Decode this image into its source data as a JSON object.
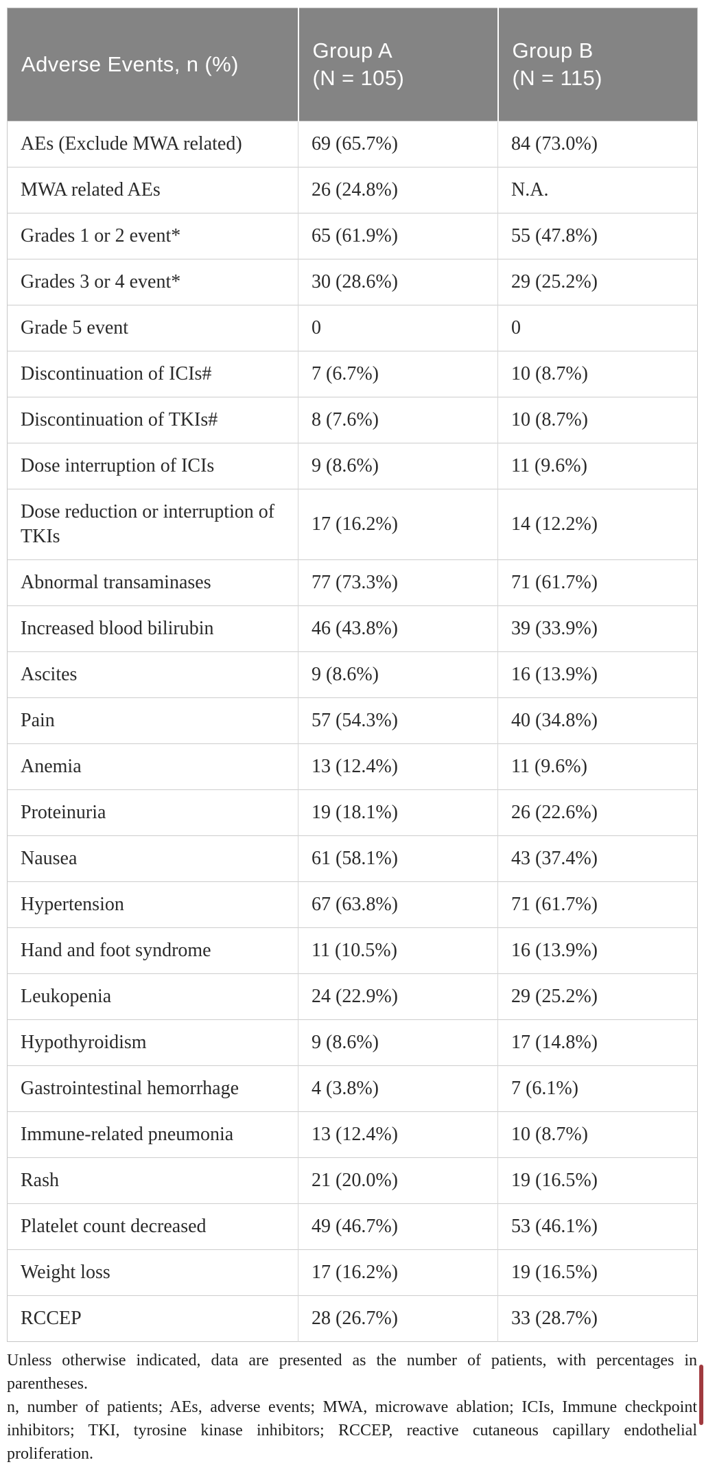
{
  "header": {
    "events_label": "Adverse Events, n (%)",
    "group_a_line1": "Group A",
    "group_a_line2": "(N = 105)",
    "group_b_line1": "Group B",
    "group_b_line2": "(N = 115)"
  },
  "rows": [
    {
      "label": "AEs (Exclude MWA related)",
      "group_a": "69 (65.7%)",
      "group_b": "84 (73.0%)"
    },
    {
      "label": "MWA related AEs",
      "group_a": "26 (24.8%)",
      "group_b": "N.A."
    },
    {
      "label": "Grades 1 or 2 event*",
      "group_a": "65 (61.9%)",
      "group_b": "55 (47.8%)"
    },
    {
      "label": "Grades 3 or 4 event*",
      "group_a": "30 (28.6%)",
      "group_b": "29 (25.2%)"
    },
    {
      "label": "Grade 5 event",
      "group_a": "0",
      "group_b": "0"
    },
    {
      "label": "Discontinuation of ICIs#",
      "group_a": "7 (6.7%)",
      "group_b": "10 (8.7%)"
    },
    {
      "label": "Discontinuation of TKIs#",
      "group_a": "8 (7.6%)",
      "group_b": "10 (8.7%)"
    },
    {
      "label": "Dose interruption of ICIs",
      "group_a": "9 (8.6%)",
      "group_b": "11 (9.6%)"
    },
    {
      "label": "Dose reduction or interruption of TKIs",
      "group_a": "17 (16.2%)",
      "group_b": "14 (12.2%)"
    },
    {
      "label": "Abnormal transaminases",
      "group_a": "77 (73.3%)",
      "group_b": "71 (61.7%)"
    },
    {
      "label": "Increased blood bilirubin",
      "group_a": "46 (43.8%)",
      "group_b": "39 (33.9%)"
    },
    {
      "label": "Ascites",
      "group_a": "9 (8.6%)",
      "group_b": "16 (13.9%)"
    },
    {
      "label": "Pain",
      "group_a": "57 (54.3%)",
      "group_b": "40 (34.8%)"
    },
    {
      "label": "Anemia",
      "group_a": "13 (12.4%)",
      "group_b": "11 (9.6%)"
    },
    {
      "label": "Proteinuria",
      "group_a": "19 (18.1%)",
      "group_b": "26 (22.6%)"
    },
    {
      "label": "Nausea",
      "group_a": "61 (58.1%)",
      "group_b": "43 (37.4%)"
    },
    {
      "label": "Hypertension",
      "group_a": "67 (63.8%)",
      "group_b": "71 (61.7%)"
    },
    {
      "label": "Hand and foot syndrome",
      "group_a": "11 (10.5%)",
      "group_b": "16 (13.9%)"
    },
    {
      "label": "Leukopenia",
      "group_a": "24 (22.9%)",
      "group_b": "29 (25.2%)"
    },
    {
      "label": "Hypothyroidism",
      "group_a": "9 (8.6%)",
      "group_b": "17 (14.8%)"
    },
    {
      "label": "Gastrointestinal hemorrhage",
      "group_a": "4 (3.8%)",
      "group_b": "7 (6.1%)"
    },
    {
      "label": "Immune-related pneumonia",
      "group_a": "13 (12.4%)",
      "group_b": "10 (8.7%)"
    },
    {
      "label": "Rash",
      "group_a": "21 (20.0%)",
      "group_b": "19 (16.5%)"
    },
    {
      "label": "Platelet count decreased",
      "group_a": "49 (46.7%)",
      "group_b": "53 (46.1%)"
    },
    {
      "label": "Weight loss",
      "group_a": "17 (16.2%)",
      "group_b": "19 (16.5%)"
    },
    {
      "label": "RCCEP",
      "group_a": "28 (26.7%)",
      "group_b": "33 (28.7%)"
    }
  ],
  "footnotes": {
    "presentation": "Unless otherwise indicated, data are presented as the number of patients, with percentages in parentheses.",
    "abbreviations": "n, number of patients; AEs, adverse events; MWA, microwave ablation; ICIs, Immune checkpoint inhibitors; TKI, tyrosine kinase inhibitors; RCCEP, reactive cutaneous capillary endothelial proliferation."
  },
  "colors": {
    "header_bg": "#848484",
    "header_text": "#ffffff",
    "grid_line": "#cdcdcd",
    "body_text": "#2a2a2a",
    "red_marker": "#a03a3e"
  }
}
